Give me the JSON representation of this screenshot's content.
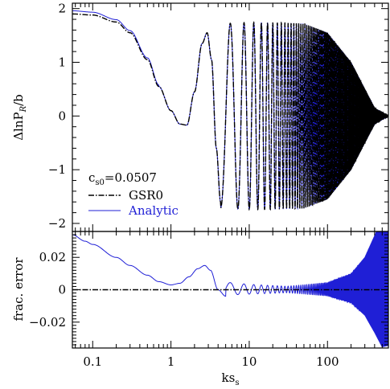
{
  "chart_data": [
    {
      "type": "line",
      "panel": "top",
      "title": "",
      "xlabel": "",
      "ylabel": "ΔlnP_R/b",
      "ylabel_parts": {
        "prefix": "ΔlnP",
        "sub": "R",
        "suffix": "/b"
      },
      "x_scale": "log",
      "xlim": [
        0.055,
        600
      ],
      "ylim": [
        -2.15,
        2.1
      ],
      "yticks": [
        -2,
        -1,
        0,
        1,
        2
      ],
      "ytick_labels": [
        "−2",
        "−1",
        "0",
        "1",
        "2"
      ],
      "grid": false,
      "legend": {
        "title_parts": {
          "prefix": "c",
          "sub": "s0",
          "suffix": "=0.0507"
        },
        "placement": "lower-left",
        "entries": [
          {
            "label": "GSR0",
            "color": "#000000",
            "style": "dash-dot"
          },
          {
            "label": "Analytic",
            "color": "#1f1fd6",
            "style": "solid"
          }
        ]
      },
      "series": [
        {
          "name": "GSR0",
          "color": "#000000",
          "style": "dash-dot",
          "x": [
            0.055,
            0.1,
            0.2,
            0.3,
            0.5,
            0.7,
            1.0,
            1.3,
            1.6,
            2.0,
            2.5,
            2.9,
            3.3,
            3.8,
            4.3,
            5,
            6,
            8,
            10,
            20,
            50,
            100,
            200,
            300,
            400,
            600
          ],
          "y": [
            1.9,
            1.88,
            1.75,
            1.55,
            1.05,
            0.55,
            0.1,
            -0.15,
            -0.17,
            0.45,
            1.35,
            1.55,
            1.05,
            -0.6,
            -1.6,
            "osc",
            "osc",
            "osc",
            "osc",
            "osc",
            "osc",
            "osc",
            "osc",
            "osc",
            "osc",
            0.0
          ],
          "description_envelope_amplitude": {
            "x": [
              4.3,
              10,
              20,
              50,
              100,
              200,
              300,
              400,
              600
            ],
            "amp": [
              1.72,
              1.74,
              1.74,
              1.72,
              1.55,
              1.0,
              0.5,
              0.15,
              0.0
            ]
          }
        },
        {
          "name": "Analytic",
          "color": "#1f1fd6",
          "style": "solid",
          "x": [
            0.055,
            0.1,
            0.2,
            0.3,
            0.5,
            0.7,
            1.0,
            1.3,
            1.6,
            2.0,
            2.5,
            2.9,
            3.3,
            3.8,
            4.3,
            600
          ],
          "y": [
            1.96,
            1.93,
            1.78,
            1.57,
            1.06,
            0.56,
            0.1,
            -0.15,
            -0.17,
            0.45,
            1.35,
            1.55,
            1.05,
            -0.6,
            -1.6,
            0.0
          ]
        }
      ]
    },
    {
      "type": "line",
      "panel": "bottom",
      "title": "",
      "xlabel": "ks_s",
      "xlabel_parts": {
        "prefix": "ks",
        "sub": "s"
      },
      "ylabel": "frac. error",
      "x_scale": "log",
      "xlim": [
        0.055,
        600
      ],
      "ylim": [
        -0.036,
        0.036
      ],
      "xticks": [
        0.1,
        1,
        10,
        100
      ],
      "xtick_labels": [
        "0.1",
        "1",
        "10",
        "100"
      ],
      "yticks": [
        -0.02,
        0,
        0.02
      ],
      "ytick_labels": [
        "−0.02",
        "0",
        "0.02"
      ],
      "grid": false,
      "series": [
        {
          "name": "Analytic",
          "color": "#1f1fd6",
          "style": "solid",
          "x": [
            0.055,
            0.08,
            0.1,
            0.2,
            0.3,
            0.5,
            0.7,
            1.0,
            1.3,
            1.7,
            2.2,
            2.7,
            3.2,
            4.0,
            5.0,
            6.0,
            10,
            30,
            100,
            200,
            300,
            600
          ],
          "y": [
            0.034,
            0.03,
            0.028,
            0.02,
            0.015,
            0.009,
            0.005,
            0.003,
            0.004,
            0.008,
            0.013,
            0.015,
            0.012,
            0.0,
            -0.004,
            0.004,
            0.002,
            0.001,
            0.002,
            0.006,
            0.014,
            0.036
          ],
          "description_envelope_amplitude": {
            "x": [
              5,
              10,
              30,
              100,
              200,
              300,
              400,
              500,
              600
            ],
            "amp": [
              0.004,
              0.003,
              0.002,
              0.004,
              0.009,
              0.018,
              0.03,
              0.04,
              0.04
            ]
          }
        },
        {
          "name": "GSR0",
          "color": "#000000",
          "style": "dash-dot",
          "x": [
            0.055,
            600
          ],
          "y": [
            0,
            0
          ]
        }
      ]
    }
  ]
}
